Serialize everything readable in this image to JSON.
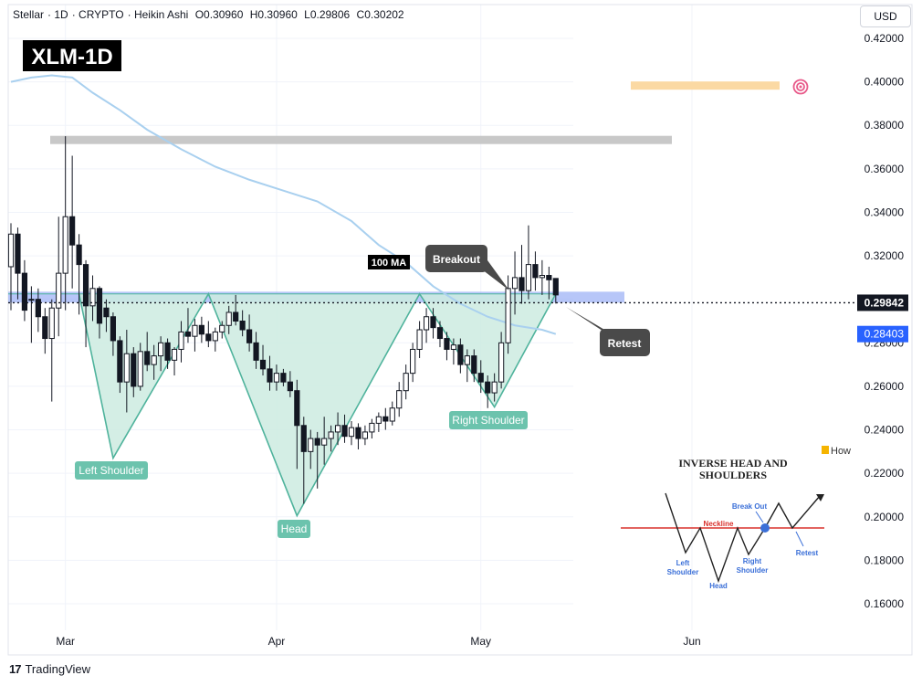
{
  "header": {
    "symbol": "Stellar",
    "interval": "1D",
    "exchange": "CRYPTO",
    "chart_style": "Heikin Ashi",
    "ohlc": {
      "o": "O0.30960",
      "h": "H0.30960",
      "l": "L0.29806",
      "c": "C0.30202"
    }
  },
  "currency_button": "USD",
  "badge": "XLM-1D",
  "footer": {
    "logo_mark": "17",
    "brand": "TradingView"
  },
  "colors": {
    "bull": "#131722",
    "bear": "#131722",
    "pattern_fill": "#cdebe1",
    "pattern_line": "#4fb39c",
    "label_green": "#6cc3ad",
    "ma": "#a9d0ef",
    "neckline_zone": "#9fb3f5",
    "resistance": "#c8c8c8",
    "target_zone": "#fbd9a3",
    "target_icon": "#e85a8a",
    "callout": "#4a4a4a",
    "last_price_tag": "#131722",
    "ma_tag": "#2962ff"
  },
  "chart_data": {
    "type": "candlestick",
    "chart_style": "Heikin Ashi",
    "y_axis": {
      "range": [
        0.145,
        0.435
      ],
      "ticks": [
        "0.42000",
        "0.40000",
        "0.38000",
        "0.36000",
        "0.34000",
        "0.32000",
        "0.30000",
        "0.28000",
        "0.26000",
        "0.24000",
        "0.22000",
        "0.20000",
        "0.18000",
        "0.16000"
      ]
    },
    "x_axis": {
      "ticks": [
        {
          "label": "Mar",
          "day": 8
        },
        {
          "label": "Apr",
          "day": 39
        },
        {
          "label": "May",
          "day": 69
        },
        {
          "label": "Jun",
          "day": 100
        }
      ]
    },
    "last_price": "0.29842",
    "ma_value": "0.28403",
    "candles": [
      {
        "d": 0,
        "o": 0.315,
        "h": 0.335,
        "l": 0.295,
        "c": 0.33
      },
      {
        "d": 1,
        "o": 0.33,
        "h": 0.333,
        "l": 0.3,
        "c": 0.312
      },
      {
        "d": 2,
        "o": 0.312,
        "h": 0.318,
        "l": 0.29,
        "c": 0.295
      },
      {
        "d": 3,
        "o": 0.3,
        "h": 0.306,
        "l": 0.28,
        "c": 0.3
      },
      {
        "d": 4,
        "o": 0.3,
        "h": 0.305,
        "l": 0.285,
        "c": 0.292
      },
      {
        "d": 5,
        "o": 0.292,
        "h": 0.296,
        "l": 0.275,
        "c": 0.282
      },
      {
        "d": 6,
        "o": 0.282,
        "h": 0.3,
        "l": 0.253,
        "c": 0.296
      },
      {
        "d": 7,
        "o": 0.296,
        "h": 0.338,
        "l": 0.283,
        "c": 0.312
      },
      {
        "d": 8,
        "o": 0.312,
        "h": 0.375,
        "l": 0.295,
        "c": 0.338
      },
      {
        "d": 9,
        "o": 0.338,
        "h": 0.366,
        "l": 0.305,
        "c": 0.325
      },
      {
        "d": 10,
        "o": 0.325,
        "h": 0.33,
        "l": 0.293,
        "c": 0.316
      },
      {
        "d": 11,
        "o": 0.316,
        "h": 0.318,
        "l": 0.278,
        "c": 0.297
      },
      {
        "d": 12,
        "o": 0.297,
        "h": 0.311,
        "l": 0.29,
        "c": 0.305
      },
      {
        "d": 13,
        "o": 0.305,
        "h": 0.306,
        "l": 0.282,
        "c": 0.289
      },
      {
        "d": 14,
        "o": 0.296,
        "h": 0.3,
        "l": 0.285,
        "c": 0.292
      },
      {
        "d": 15,
        "o": 0.292,
        "h": 0.294,
        "l": 0.274,
        "c": 0.281
      },
      {
        "d": 16,
        "o": 0.281,
        "h": 0.283,
        "l": 0.257,
        "c": 0.262
      },
      {
        "d": 17,
        "o": 0.262,
        "h": 0.286,
        "l": 0.248,
        "c": 0.275
      },
      {
        "d": 18,
        "o": 0.275,
        "h": 0.278,
        "l": 0.255,
        "c": 0.26
      },
      {
        "d": 19,
        "o": 0.26,
        "h": 0.28,
        "l": 0.258,
        "c": 0.276
      },
      {
        "d": 20,
        "o": 0.276,
        "h": 0.285,
        "l": 0.267,
        "c": 0.27
      },
      {
        "d": 21,
        "o": 0.27,
        "h": 0.279,
        "l": 0.263,
        "c": 0.274
      },
      {
        "d": 22,
        "o": 0.274,
        "h": 0.283,
        "l": 0.267,
        "c": 0.28
      },
      {
        "d": 23,
        "o": 0.28,
        "h": 0.282,
        "l": 0.268,
        "c": 0.272
      },
      {
        "d": 24,
        "o": 0.272,
        "h": 0.278,
        "l": 0.265,
        "c": 0.277
      },
      {
        "d": 25,
        "o": 0.277,
        "h": 0.29,
        "l": 0.271,
        "c": 0.285
      },
      {
        "d": 26,
        "o": 0.285,
        "h": 0.296,
        "l": 0.28,
        "c": 0.283
      },
      {
        "d": 27,
        "o": 0.283,
        "h": 0.291,
        "l": 0.276,
        "c": 0.288
      },
      {
        "d": 28,
        "o": 0.288,
        "h": 0.292,
        "l": 0.28,
        "c": 0.284
      },
      {
        "d": 29,
        "o": 0.284,
        "h": 0.29,
        "l": 0.278,
        "c": 0.281
      },
      {
        "d": 30,
        "o": 0.281,
        "h": 0.287,
        "l": 0.276,
        "c": 0.285
      },
      {
        "d": 31,
        "o": 0.285,
        "h": 0.29,
        "l": 0.282,
        "c": 0.288
      },
      {
        "d": 32,
        "o": 0.288,
        "h": 0.297,
        "l": 0.284,
        "c": 0.294
      },
      {
        "d": 33,
        "o": 0.294,
        "h": 0.302,
        "l": 0.288,
        "c": 0.29
      },
      {
        "d": 34,
        "o": 0.29,
        "h": 0.295,
        "l": 0.283,
        "c": 0.286
      },
      {
        "d": 35,
        "o": 0.286,
        "h": 0.293,
        "l": 0.276,
        "c": 0.28
      },
      {
        "d": 36,
        "o": 0.28,
        "h": 0.285,
        "l": 0.268,
        "c": 0.272
      },
      {
        "d": 37,
        "o": 0.272,
        "h": 0.279,
        "l": 0.265,
        "c": 0.268
      },
      {
        "d": 38,
        "o": 0.268,
        "h": 0.274,
        "l": 0.258,
        "c": 0.262
      },
      {
        "d": 39,
        "o": 0.262,
        "h": 0.27,
        "l": 0.258,
        "c": 0.266
      },
      {
        "d": 40,
        "o": 0.266,
        "h": 0.268,
        "l": 0.26,
        "c": 0.262
      },
      {
        "d": 41,
        "o": 0.262,
        "h": 0.267,
        "l": 0.255,
        "c": 0.258
      },
      {
        "d": 42,
        "o": 0.258,
        "h": 0.263,
        "l": 0.222,
        "c": 0.242
      },
      {
        "d": 43,
        "o": 0.242,
        "h": 0.246,
        "l": 0.206,
        "c": 0.23
      },
      {
        "d": 44,
        "o": 0.23,
        "h": 0.24,
        "l": 0.222,
        "c": 0.236
      },
      {
        "d": 45,
        "o": 0.236,
        "h": 0.239,
        "l": 0.213,
        "c": 0.233
      },
      {
        "d": 46,
        "o": 0.233,
        "h": 0.246,
        "l": 0.224,
        "c": 0.236
      },
      {
        "d": 47,
        "o": 0.236,
        "h": 0.242,
        "l": 0.23,
        "c": 0.239
      },
      {
        "d": 48,
        "o": 0.239,
        "h": 0.248,
        "l": 0.233,
        "c": 0.242
      },
      {
        "d": 49,
        "o": 0.242,
        "h": 0.247,
        "l": 0.234,
        "c": 0.237
      },
      {
        "d": 50,
        "o": 0.237,
        "h": 0.244,
        "l": 0.233,
        "c": 0.241
      },
      {
        "d": 51,
        "o": 0.241,
        "h": 0.243,
        "l": 0.231,
        "c": 0.236
      },
      {
        "d": 52,
        "o": 0.236,
        "h": 0.242,
        "l": 0.233,
        "c": 0.239
      },
      {
        "d": 53,
        "o": 0.239,
        "h": 0.245,
        "l": 0.236,
        "c": 0.243
      },
      {
        "d": 54,
        "o": 0.243,
        "h": 0.248,
        "l": 0.239,
        "c": 0.246
      },
      {
        "d": 55,
        "o": 0.246,
        "h": 0.25,
        "l": 0.24,
        "c": 0.244
      },
      {
        "d": 56,
        "o": 0.244,
        "h": 0.253,
        "l": 0.242,
        "c": 0.25
      },
      {
        "d": 57,
        "o": 0.25,
        "h": 0.262,
        "l": 0.246,
        "c": 0.258
      },
      {
        "d": 58,
        "o": 0.258,
        "h": 0.27,
        "l": 0.254,
        "c": 0.266
      },
      {
        "d": 59,
        "o": 0.266,
        "h": 0.28,
        "l": 0.262,
        "c": 0.277
      },
      {
        "d": 60,
        "o": 0.277,
        "h": 0.29,
        "l": 0.273,
        "c": 0.286
      },
      {
        "d": 61,
        "o": 0.286,
        "h": 0.296,
        "l": 0.28,
        "c": 0.292
      },
      {
        "d": 62,
        "o": 0.292,
        "h": 0.296,
        "l": 0.282,
        "c": 0.287
      },
      {
        "d": 63,
        "o": 0.287,
        "h": 0.29,
        "l": 0.278,
        "c": 0.282
      },
      {
        "d": 64,
        "o": 0.282,
        "h": 0.285,
        "l": 0.272,
        "c": 0.277
      },
      {
        "d": 65,
        "o": 0.277,
        "h": 0.282,
        "l": 0.27,
        "c": 0.279
      },
      {
        "d": 66,
        "o": 0.279,
        "h": 0.282,
        "l": 0.266,
        "c": 0.27
      },
      {
        "d": 67,
        "o": 0.27,
        "h": 0.277,
        "l": 0.262,
        "c": 0.274
      },
      {
        "d": 68,
        "o": 0.274,
        "h": 0.277,
        "l": 0.262,
        "c": 0.266
      },
      {
        "d": 69,
        "o": 0.266,
        "h": 0.272,
        "l": 0.257,
        "c": 0.262
      },
      {
        "d": 70,
        "o": 0.262,
        "h": 0.265,
        "l": 0.25,
        "c": 0.257
      },
      {
        "d": 71,
        "o": 0.257,
        "h": 0.266,
        "l": 0.253,
        "c": 0.262
      },
      {
        "d": 72,
        "o": 0.262,
        "h": 0.285,
        "l": 0.259,
        "c": 0.28
      },
      {
        "d": 73,
        "o": 0.28,
        "h": 0.311,
        "l": 0.275,
        "c": 0.305
      },
      {
        "d": 74,
        "o": 0.305,
        "h": 0.322,
        "l": 0.293,
        "c": 0.31
      },
      {
        "d": 75,
        "o": 0.31,
        "h": 0.325,
        "l": 0.298,
        "c": 0.304
      },
      {
        "d": 76,
        "o": 0.304,
        "h": 0.334,
        "l": 0.3,
        "c": 0.316
      },
      {
        "d": 77,
        "o": 0.316,
        "h": 0.322,
        "l": 0.304,
        "c": 0.31
      },
      {
        "d": 78,
        "o": 0.31,
        "h": 0.318,
        "l": 0.302,
        "c": 0.311
      },
      {
        "d": 79,
        "o": 0.311,
        "h": 0.315,
        "l": 0.3,
        "c": 0.309
      },
      {
        "d": 80,
        "o": 0.3096,
        "h": 0.3096,
        "l": 0.29806,
        "c": 0.30202
      }
    ],
    "ma100": [
      {
        "d": 0,
        "v": 0.4
      },
      {
        "d": 3,
        "v": 0.402
      },
      {
        "d": 6,
        "v": 0.403
      },
      {
        "d": 9,
        "v": 0.402
      },
      {
        "d": 12,
        "v": 0.395
      },
      {
        "d": 16,
        "v": 0.387
      },
      {
        "d": 20,
        "v": 0.378
      },
      {
        "d": 25,
        "v": 0.369
      },
      {
        "d": 30,
        "v": 0.361
      },
      {
        "d": 35,
        "v": 0.355
      },
      {
        "d": 40,
        "v": 0.35
      },
      {
        "d": 45,
        "v": 0.345
      },
      {
        "d": 50,
        "v": 0.336
      },
      {
        "d": 54,
        "v": 0.325
      },
      {
        "d": 58,
        "v": 0.317
      },
      {
        "d": 62,
        "v": 0.306
      },
      {
        "d": 66,
        "v": 0.298
      },
      {
        "d": 70,
        "v": 0.292
      },
      {
        "d": 74,
        "v": 0.288
      },
      {
        "d": 78,
        "v": 0.286
      },
      {
        "d": 80,
        "v": 0.28403
      }
    ],
    "levels": {
      "neckline_zone": [
        0.2985,
        0.3035
      ],
      "resistance": 0.3735,
      "target": 0.3985
    },
    "pattern_points": [
      {
        "d": 10,
        "v": 0.3025
      },
      {
        "d": 15,
        "v": 0.227
      },
      {
        "d": 29,
        "v": 0.3025
      },
      {
        "d": 42,
        "v": 0.2005
      },
      {
        "d": 60,
        "v": 0.3025
      },
      {
        "d": 71,
        "v": 0.2505
      },
      {
        "d": 80,
        "v": 0.3025
      }
    ],
    "annotations": {
      "left_shoulder": "Left Shoulder",
      "head": "Head",
      "right_shoulder": "Right Shoulder",
      "ma_label": "100 MA",
      "breakout": "Breakout",
      "retest": "Retest"
    },
    "inset": {
      "logo": "How",
      "title_line1": "INVERSE HEAD AND",
      "title_line2": "SHOULDERS",
      "neckline": "Neckline",
      "break_out": "Break Out",
      "left_shoulder_line1": "Left",
      "left_shoulder_line2": "Shoulder",
      "head": "Head",
      "right_shoulder_line1": "Right",
      "right_shoulder_line2": "Shoulder",
      "retest": "Retest"
    }
  }
}
